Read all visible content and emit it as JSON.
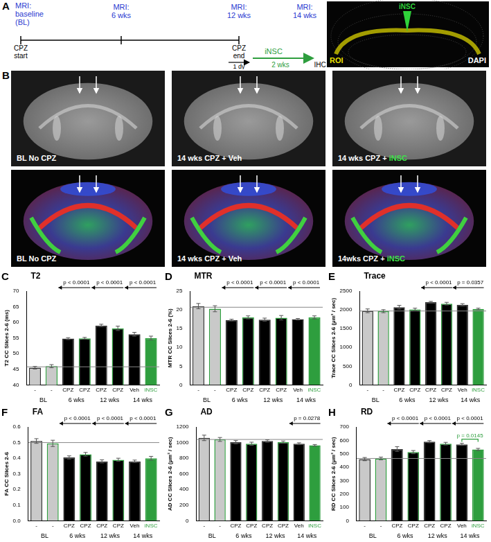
{
  "panel_A": {
    "letter": "A",
    "mri": [
      [
        "MRI:",
        "baseline",
        "(BL)"
      ],
      [
        "MRI:",
        "6 wks"
      ],
      [
        "MRI:",
        "12 wks"
      ],
      [
        "MRI:",
        "14 wks"
      ]
    ],
    "cpz_start": [
      "CPZ",
      "start"
    ],
    "cpz_end": [
      "CPZ",
      "end"
    ],
    "delay": "1 dy",
    "treatment": "iNSC",
    "treatment_duration": "2 wks",
    "endpoint": "IHC",
    "image_labels": {
      "injection": "iNSC",
      "roi": "ROI",
      "stain": "DAPI"
    }
  },
  "panel_B": {
    "letter": "B",
    "row1": [
      "BL No CPZ",
      "14 wks CPZ + Veh",
      "14 wks CPZ + iNSC"
    ],
    "row2": [
      "BL No CPZ",
      "14 wks CPZ + Veh",
      "14wks CPZ + iNSC"
    ]
  },
  "chart_data": [
    {
      "panel": "C",
      "type": "bar",
      "title": "T2",
      "y_label": "T2 CC Slices 2-6 (ms)",
      "categories": [
        "-",
        "-",
        "CPZ",
        "CPZ",
        "CPZ",
        "CPZ",
        "Veh",
        "iNSC"
      ],
      "groups": [
        {
          "label": "BL",
          "bars": [
            0,
            1
          ]
        },
        {
          "label": "6 wks",
          "bars": [
            2,
            3
          ]
        },
        {
          "label": "12 wks",
          "bars": [
            4,
            5
          ]
        },
        {
          "label": "14 wks",
          "bars": [
            6,
            7
          ]
        }
      ],
      "values": [
        45.5,
        46.0,
        54.8,
        54.9,
        59.0,
        58.1,
        56.2,
        55.0
      ],
      "errors": [
        0.4,
        0.5,
        0.3,
        0.3,
        0.4,
        0.7,
        0.6,
        0.6
      ],
      "colors": [
        "#c9c9c9",
        "#c9c9c9",
        "#000000",
        "#000000",
        "#000000",
        "#000000",
        "#000000",
        "#2e9e3e"
      ],
      "reference_line": 45.8,
      "ylim": [
        40,
        70
      ],
      "yticks": [
        40,
        45,
        50,
        55,
        60,
        65,
        70
      ],
      "grid": false,
      "annotations": [
        {
          "text": "p < 0.0001",
          "bars": [
            2,
            3
          ],
          "kind": "arrow",
          "color": "#000000"
        },
        {
          "text": "p < 0.0001",
          "bars": [
            4,
            5
          ],
          "kind": "arrow",
          "color": "#000000"
        },
        {
          "text": "p < 0.0001",
          "bars": [
            6,
            7
          ],
          "kind": "arrow",
          "color": "#000000"
        }
      ]
    },
    {
      "panel": "D",
      "type": "bar",
      "title": "MTR",
      "y_label": "MTR CC Slices 2-6 (%)",
      "categories": [
        "-",
        "-",
        "CPZ",
        "CPZ",
        "CPZ",
        "CPZ",
        "Veh",
        "iNSC"
      ],
      "groups": [
        {
          "label": "BL",
          "bars": [
            0,
            1
          ]
        },
        {
          "label": "6 wks",
          "bars": [
            2,
            3
          ]
        },
        {
          "label": "12 wks",
          "bars": [
            4,
            5
          ]
        },
        {
          "label": "14 wks",
          "bars": [
            6,
            7
          ]
        }
      ],
      "values": [
        21.0,
        20.3,
        17.3,
        18.0,
        17.4,
        17.9,
        17.5,
        18.0
      ],
      "errors": [
        0.7,
        0.8,
        0.2,
        0.4,
        0.4,
        0.6,
        0.2,
        0.4
      ],
      "colors": [
        "#c9c9c9",
        "#c9c9c9",
        "#000000",
        "#000000",
        "#000000",
        "#000000",
        "#000000",
        "#2e9e3e"
      ],
      "reference_line": 20.7,
      "ylim": [
        0,
        25
      ],
      "yticks": [
        0,
        5,
        10,
        15,
        20,
        25
      ],
      "grid": false,
      "annotations": [
        {
          "text": "p < 0.0001",
          "bars": [
            2,
            3
          ],
          "kind": "arrow",
          "color": "#000000"
        },
        {
          "text": "p < 0.0001",
          "bars": [
            4,
            5
          ],
          "kind": "arrow",
          "color": "#000000"
        },
        {
          "text": "p < 0.0001",
          "bars": [
            6,
            7
          ],
          "kind": "arrow",
          "color": "#000000"
        }
      ]
    },
    {
      "panel": "E",
      "type": "bar",
      "title": "Trace",
      "y_label": "Trace CC Slices 2-6 (µm² / sec)",
      "categories": [
        "-",
        "-",
        "CPZ",
        "CPZ",
        "CPZ",
        "CPZ",
        "Veh",
        "iNSC"
      ],
      "groups": [
        {
          "label": "BL",
          "bars": [
            0,
            1
          ]
        },
        {
          "label": "6 wks",
          "bars": [
            2,
            3
          ]
        },
        {
          "label": "12 wks",
          "bars": [
            4,
            5
          ]
        },
        {
          "label": "14 wks",
          "bars": [
            6,
            7
          ]
        }
      ],
      "values": [
        1975,
        1965,
        2070,
        2010,
        2205,
        2165,
        2135,
        2025
      ],
      "errors": [
        50,
        40,
        50,
        35,
        20,
        35,
        30,
        20
      ],
      "colors": [
        "#c9c9c9",
        "#c9c9c9",
        "#000000",
        "#000000",
        "#000000",
        "#000000",
        "#000000",
        "#2e9e3e"
      ],
      "reference_line": 1970,
      "ylim": [
        0,
        2500
      ],
      "yticks": [
        0,
        500,
        1000,
        1500,
        2000,
        2500
      ],
      "grid": false,
      "annotations": [
        {
          "text": "p < 0.0001",
          "bars": [
            4,
            5
          ],
          "kind": "arrow",
          "color": "#000000"
        },
        {
          "text": "p = 0.0357",
          "bars": [
            6,
            7
          ],
          "kind": "arrow",
          "color": "#000000"
        }
      ]
    },
    {
      "panel": "F",
      "type": "bar",
      "title": "FA",
      "y_label": "FA CC Slices 2-6",
      "categories": [
        "-",
        "-",
        "CPZ",
        "CPZ",
        "CPZ",
        "CPZ",
        "Veh",
        "iNSC"
      ],
      "groups": [
        {
          "label": "BL",
          "bars": [
            0,
            1
          ]
        },
        {
          "label": "6 wks",
          "bars": [
            2,
            3
          ]
        },
        {
          "label": "12 wks",
          "bars": [
            4,
            5
          ]
        },
        {
          "label": "14 wks",
          "bars": [
            6,
            7
          ]
        }
      ],
      "values": [
        0.51,
        0.495,
        0.405,
        0.425,
        0.38,
        0.39,
        0.38,
        0.4
      ],
      "errors": [
        0.015,
        0.02,
        0.01,
        0.012,
        0.01,
        0.01,
        0.008,
        0.012
      ],
      "colors": [
        "#c9c9c9",
        "#c9c9c9",
        "#000000",
        "#000000",
        "#000000",
        "#000000",
        "#000000",
        "#2e9e3e"
      ],
      "reference_line": 0.5,
      "ylim": [
        0,
        0.6
      ],
      "yticks": [
        {
          "value": 0,
          "label": "0.0"
        },
        0.1,
        0.2,
        0.3,
        0.4,
        0.5,
        0.6
      ],
      "grid": false,
      "annotations": [
        {
          "text": "p < 0.0001",
          "bars": [
            2,
            3
          ],
          "kind": "arrow",
          "color": "#000000"
        },
        {
          "text": "p < 0.0001",
          "bars": [
            4,
            5
          ],
          "kind": "arrow",
          "color": "#000000"
        },
        {
          "text": "p < 0.0001",
          "bars": [
            6,
            7
          ],
          "kind": "arrow",
          "color": "#000000"
        }
      ]
    },
    {
      "panel": "G",
      "type": "bar",
      "title": "AD",
      "y_label": "AD CC Slices 2-6 (µm² / sec)",
      "categories": [
        "-",
        "-",
        "CPZ",
        "CPZ",
        "CPZ",
        "CPZ",
        "Veh",
        "iNSC"
      ],
      "groups": [
        {
          "label": "BL",
          "bars": [
            0,
            1
          ]
        },
        {
          "label": "6 wks",
          "bars": [
            2,
            3
          ]
        },
        {
          "label": "12 wks",
          "bars": [
            4,
            5
          ]
        },
        {
          "label": "14 wks",
          "bars": [
            6,
            7
          ]
        }
      ],
      "values": [
        1060,
        1040,
        1005,
        985,
        1020,
        1005,
        985,
        965
      ],
      "errors": [
        35,
        25,
        20,
        20,
        15,
        15,
        12,
        10
      ],
      "colors": [
        "#c9c9c9",
        "#c9c9c9",
        "#000000",
        "#000000",
        "#000000",
        "#000000",
        "#000000",
        "#2e9e3e"
      ],
      "reference_line": 1040,
      "ylim": [
        0,
        1200
      ],
      "yticks": [
        0,
        200,
        400,
        600,
        800,
        1000,
        1200
      ],
      "grid": false,
      "annotations": [
        {
          "text": "p = 0.0278",
          "bars": [
            6,
            7
          ],
          "kind": "arrow",
          "color": "#000000"
        }
      ]
    },
    {
      "panel": "H",
      "type": "bar",
      "title": "RD",
      "y_label": "RD CC Slices 2-6 (µm² / sec)",
      "categories": [
        "-",
        "-",
        "CPZ",
        "CPZ",
        "CPZ",
        "CPZ",
        "Veh",
        "iNSC"
      ],
      "groups": [
        {
          "label": "BL",
          "bars": [
            0,
            1
          ]
        },
        {
          "label": "6 wks",
          "bars": [
            2,
            3
          ]
        },
        {
          "label": "12 wks",
          "bars": [
            4,
            5
          ]
        },
        {
          "label": "14 wks",
          "bars": [
            6,
            7
          ]
        }
      ],
      "values": [
        460,
        465,
        535,
        512,
        590,
        575,
        570,
        532
      ],
      "errors": [
        12,
        10,
        18,
        12,
        8,
        10,
        8,
        8
      ],
      "colors": [
        "#c9c9c9",
        "#c9c9c9",
        "#000000",
        "#000000",
        "#000000",
        "#000000",
        "#000000",
        "#2e9e3e"
      ],
      "reference_line": 465,
      "ylim": [
        0,
        700
      ],
      "yticks": [
        0,
        100,
        200,
        300,
        400,
        500,
        600,
        700
      ],
      "grid": false,
      "annotations": [
        {
          "text": "p < 0.0001",
          "bars": [
            2,
            3
          ],
          "kind": "arrow",
          "color": "#000000"
        },
        {
          "text": "p < 0.0001",
          "bars": [
            4,
            5
          ],
          "kind": "arrow",
          "color": "#000000"
        },
        {
          "text": "p < 0.0001",
          "bars": [
            6,
            7
          ],
          "kind": "arrow",
          "color": "#000000"
        },
        {
          "text": "p = 0.0145",
          "bars": [
            6,
            7
          ],
          "kind": "bracket",
          "color": "#2e9e3e"
        }
      ]
    }
  ]
}
